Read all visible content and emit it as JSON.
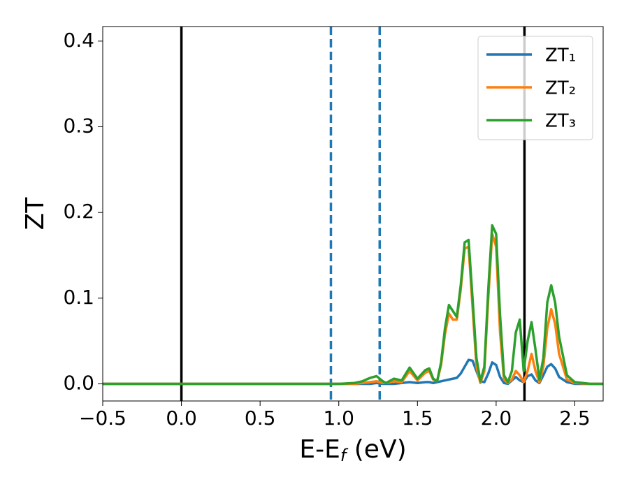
{
  "chart_data": {
    "type": "line",
    "x_label_parts": [
      "E-E",
      "f",
      " (eV)"
    ],
    "y_label": "ZT",
    "x": [
      -0.5,
      0.9,
      1.0,
      1.1,
      1.15,
      1.2,
      1.24,
      1.28,
      1.3,
      1.35,
      1.4,
      1.45,
      1.5,
      1.55,
      1.575,
      1.6,
      1.625,
      1.65,
      1.675,
      1.7,
      1.725,
      1.75,
      1.775,
      1.8,
      1.825,
      1.85,
      1.875,
      1.9,
      1.925,
      1.95,
      1.975,
      2.0,
      2.025,
      2.05,
      2.075,
      2.1,
      2.125,
      2.15,
      2.175,
      2.2,
      2.225,
      2.25,
      2.275,
      2.3,
      2.325,
      2.35,
      2.375,
      2.4,
      2.45,
      2.5,
      2.6,
      2.68
    ],
    "series": [
      {
        "name": "ZT₁",
        "color": "#1f77b4",
        "values": [
          0,
          0,
          0,
          0,
          0,
          0,
          0.001,
          0,
          0,
          0,
          0.001,
          0.002,
          0.001,
          0.002,
          0.002,
          0.001,
          0.002,
          0.003,
          0.004,
          0.005,
          0.006,
          0.007,
          0.012,
          0.02,
          0.028,
          0.027,
          0.015,
          0.003,
          0.002,
          0.012,
          0.025,
          0.022,
          0.008,
          0.001,
          0,
          0.004,
          0.008,
          0.004,
          0.002,
          0.009,
          0.011,
          0.004,
          0.001,
          0.01,
          0.02,
          0.023,
          0.018,
          0.008,
          0.002,
          0,
          0,
          0
        ]
      },
      {
        "name": "ZT₂",
        "color": "#ff7f0e",
        "values": [
          0,
          0,
          0,
          0,
          0.001,
          0.002,
          0.003,
          0.001,
          0.001,
          0.003,
          0.002,
          0.015,
          0.004,
          0.013,
          0.015,
          0.005,
          0.003,
          0.022,
          0.058,
          0.082,
          0.075,
          0.075,
          0.11,
          0.158,
          0.16,
          0.09,
          0.02,
          0.001,
          0.015,
          0.1,
          0.175,
          0.16,
          0.06,
          0.005,
          0.001,
          0.005,
          0.015,
          0.01,
          0.002,
          0.015,
          0.035,
          0.015,
          0.002,
          0.02,
          0.065,
          0.087,
          0.07,
          0.035,
          0.005,
          0.001,
          0,
          0
        ]
      },
      {
        "name": "ZT₃",
        "color": "#2ca02c",
        "values": [
          0,
          0,
          0,
          0.001,
          0.003,
          0.007,
          0.009,
          0.003,
          0.001,
          0.006,
          0.004,
          0.019,
          0.006,
          0.016,
          0.018,
          0.006,
          0.003,
          0.025,
          0.065,
          0.092,
          0.085,
          0.078,
          0.115,
          0.165,
          0.168,
          0.1,
          0.03,
          0.003,
          0.02,
          0.11,
          0.185,
          0.175,
          0.08,
          0.01,
          0.002,
          0.015,
          0.06,
          0.075,
          0.015,
          0.05,
          0.072,
          0.04,
          0.005,
          0.03,
          0.095,
          0.115,
          0.095,
          0.055,
          0.01,
          0.002,
          0,
          0
        ]
      }
    ],
    "vlines": [
      {
        "x": 0,
        "color": "#000000",
        "dashed": false
      },
      {
        "x": 2.18,
        "color": "#000000",
        "dashed": false
      },
      {
        "x": 0.95,
        "color": "#1f77b4",
        "dashed": true
      },
      {
        "x": 1.26,
        "color": "#1f77b4",
        "dashed": true
      }
    ],
    "xlim": [
      -0.5,
      2.68
    ],
    "ylim": [
      -0.02,
      0.417
    ],
    "xticks": [
      {
        "value": -0.5,
        "label": "−0.5"
      },
      {
        "value": 0,
        "label": "0.0"
      },
      0.5,
      {
        "value": 1,
        "label": "1.0"
      },
      1.5,
      {
        "value": 2,
        "label": "2.0"
      },
      2.5
    ],
    "yticks": [
      {
        "value": 0,
        "label": "0.0"
      },
      0.1,
      0.2,
      0.3,
      0.4
    ],
    "legend": "upper right"
  }
}
